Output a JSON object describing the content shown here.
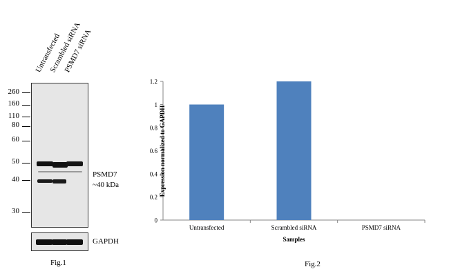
{
  "fig1": {
    "lanes": [
      "Untransfected",
      "Scrambled siRNA",
      "PSMD7 siRNA"
    ],
    "markers": [
      "260",
      "160",
      "110",
      "80",
      "60",
      "50",
      "40",
      "30"
    ],
    "target_label": "PSMD7",
    "target_size": "~40 kDa",
    "loading_control": "GAPDH",
    "caption": "Fig.1"
  },
  "fig2": {
    "caption": "Fig.2"
  },
  "chart_data": {
    "type": "bar",
    "categories": [
      "Untransfected",
      "Scrambled siRNA",
      "PSMD7 siRNA"
    ],
    "values": [
      1.0,
      1.2,
      0.0
    ],
    "xlabel": "Samples",
    "ylabel": "Expression normalized to GAPDH",
    "ylim": [
      0,
      1.2
    ],
    "yticks": [
      "0",
      "0.2",
      "0.4",
      "0.6",
      "0.8",
      "1",
      "1.2"
    ],
    "bar_color": "#4f81bd",
    "grid": false,
    "legend": "none"
  }
}
